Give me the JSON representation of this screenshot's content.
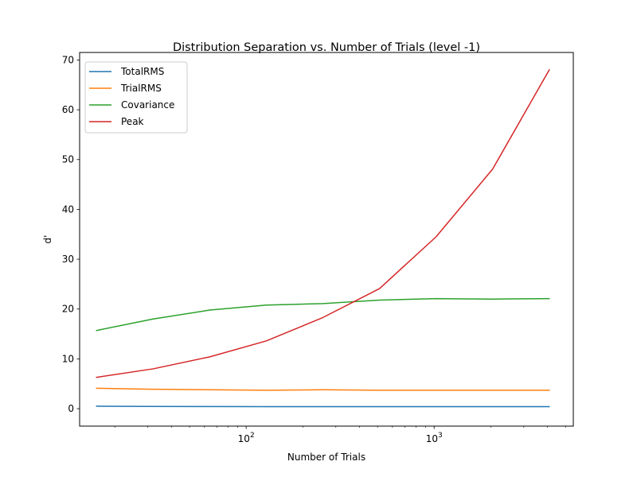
{
  "chart_data": {
    "type": "line",
    "title": "Distribution Separation vs. Number of Trials (level -1)",
    "xlabel": "Number of Trials",
    "ylabel": "d'",
    "xscale": "log",
    "xlim": [
      13,
      5500
    ],
    "ylim": [
      -3.5,
      71.5
    ],
    "grid": false,
    "legend_position": "top-left",
    "x": [
      16,
      32,
      64,
      128,
      256,
      512,
      1024,
      2048,
      4096
    ],
    "x_tick_labels": [
      "10^2",
      "10^3"
    ],
    "y_ticks": [
      0,
      10,
      20,
      30,
      40,
      50,
      60,
      70
    ],
    "series": [
      {
        "name": "TotalRMS",
        "color": "#1f77b4",
        "values": [
          0.5,
          0.45,
          0.42,
          0.41,
          0.4,
          0.4,
          0.4,
          0.4,
          0.4
        ]
      },
      {
        "name": "TrialRMS",
        "color": "#ff7f0e",
        "values": [
          4.1,
          3.9,
          3.8,
          3.7,
          3.8,
          3.7,
          3.7,
          3.7,
          3.7
        ]
      },
      {
        "name": "Covariance",
        "color": "#2ca02c",
        "values": [
          15.7,
          18.0,
          19.8,
          20.8,
          21.1,
          21.8,
          22.1,
          22.0,
          22.1
        ]
      },
      {
        "name": "Peak",
        "color": "#d62728",
        "values": [
          6.3,
          8.0,
          10.4,
          13.6,
          18.3,
          24.1,
          34.5,
          48.1,
          68.0
        ]
      }
    ]
  }
}
